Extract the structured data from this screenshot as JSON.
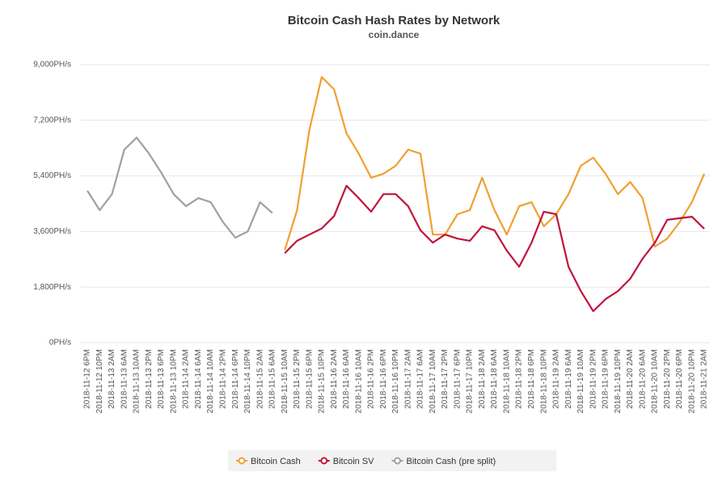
{
  "chart_data": {
    "type": "line",
    "title": "Bitcoin Cash Hash Rates by Network",
    "subtitle": "coin.dance",
    "categories": [
      "2018-11-12 6PM",
      "2018-11-12 10PM",
      "2018-11-13 2AM",
      "2018-11-13 6AM",
      "2018-11-13 10AM",
      "2018-11-13 2PM",
      "2018-11-13 6PM",
      "2018-11-13 10PM",
      "2018-11-14 2AM",
      "2018-11-14 6AM",
      "2018-11-14 10AM",
      "2018-11-14 2PM",
      "2018-11-14 6PM",
      "2018-11-14 10PM",
      "2018-11-15 2AM",
      "2018-11-15 6AM",
      "2018-11-15 10AM",
      "2018-11-15 2PM",
      "2018-11-15 6PM",
      "2018-11-15 10PM",
      "2018-11-16 2AM",
      "2018-11-16 6AM",
      "2018-11-16 10AM",
      "2018-11-16 2PM",
      "2018-11-16 6PM",
      "2018-11-16 10PM",
      "2018-11-17 2AM",
      "2018-11-17 6AM",
      "2018-11-17 10AM",
      "2018-11-17 2PM",
      "2018-11-17 6PM",
      "2018-11-17 10PM",
      "2018-11-18 2AM",
      "2018-11-18 6AM",
      "2018-11-18 10AM",
      "2018-11-18 2PM",
      "2018-11-18 6PM",
      "2018-11-18 10PM",
      "2018-11-19 2AM",
      "2018-11-19 6AM",
      "2018-11-19 10AM",
      "2018-11-19 2PM",
      "2018-11-19 6PM",
      "2018-11-19 10PM",
      "2018-11-20 2AM",
      "2018-11-20 6AM",
      "2018-11-20 10AM",
      "2018-11-20 2PM",
      "2018-11-20 6PM",
      "2018-11-20 10PM",
      "2018-11-21 2AM"
    ],
    "series": [
      {
        "name": "Bitcoin Cash",
        "color": "#f0a030",
        "values": [
          null,
          null,
          null,
          null,
          null,
          null,
          null,
          null,
          null,
          null,
          null,
          null,
          null,
          null,
          null,
          null,
          3000,
          4290,
          6900,
          8600,
          8200,
          6780,
          6120,
          5340,
          5470,
          5730,
          6250,
          6120,
          3500,
          3500,
          4160,
          4290,
          5340,
          4290,
          3500,
          4420,
          4550,
          3770,
          4160,
          4810,
          5730,
          5990,
          5470,
          4810,
          5200,
          4680,
          3110,
          3370,
          3900,
          4550,
          5470
        ]
      },
      {
        "name": "Bitcoin SV",
        "color": "#c0143c",
        "values": [
          null,
          null,
          null,
          null,
          null,
          null,
          null,
          null,
          null,
          null,
          null,
          null,
          null,
          null,
          null,
          null,
          2900,
          3300,
          3500,
          3700,
          4100,
          5080,
          4680,
          4240,
          4810,
          4810,
          4420,
          3640,
          3240,
          3500,
          3370,
          3300,
          3770,
          3640,
          2980,
          2460,
          3240,
          4240,
          4160,
          2460,
          1670,
          1020,
          1410,
          1670,
          2070,
          2720,
          3240,
          3980,
          4030,
          4080,
          3690
        ]
      },
      {
        "name": "Bitcoin Cash (pre split)",
        "color": "#a0a0a0",
        "values": [
          4920,
          4290,
          4810,
          6250,
          6640,
          6120,
          5500,
          4810,
          4420,
          4680,
          4550,
          3900,
          3400,
          3600,
          4550,
          4200,
          null,
          null,
          null,
          null,
          null,
          null,
          null,
          null,
          null,
          null,
          null,
          null,
          null,
          null,
          null,
          null,
          null,
          null,
          null,
          null,
          null,
          null,
          null,
          null,
          null,
          null,
          null,
          null,
          null,
          null,
          null,
          null,
          null,
          null,
          null
        ]
      }
    ],
    "ylim": [
      0,
      9000
    ],
    "yticks": [
      {
        "value": 0,
        "label": "0PH/s"
      },
      {
        "value": 1800,
        "label": "1,800PH/s"
      },
      {
        "value": 3600,
        "label": "3,600PH/s"
      },
      {
        "value": 5400,
        "label": "5,400PH/s"
      },
      {
        "value": 7200,
        "label": "7,200PH/s"
      },
      {
        "value": 9000,
        "label": "9,000PH/s"
      }
    ],
    "grid": true,
    "legend": "bottom"
  }
}
